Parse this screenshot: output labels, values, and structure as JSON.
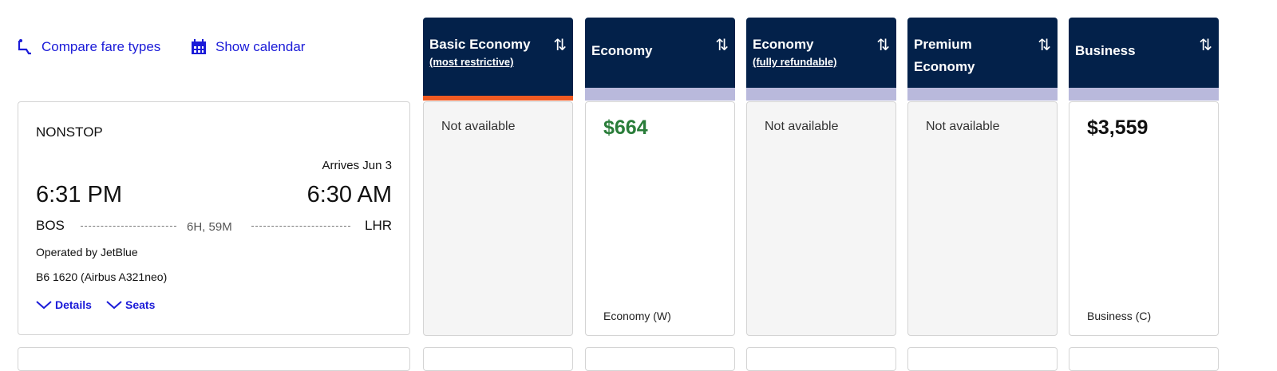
{
  "toolbar": {
    "compare_label": "Compare fare types",
    "calendar_label": "Show calendar"
  },
  "colors": {
    "navy": "#03214a",
    "link": "#1b1bd8",
    "price_green": "#2a7d3a",
    "band_lavender": "#b9b9dc",
    "band_orange": "#f05a22"
  },
  "flight": {
    "stops": "NONSTOP",
    "arrives_note": "Arrives Jun 3",
    "depart_time": "6:31 PM",
    "arrive_time": "6:30 AM",
    "origin": "BOS",
    "destination": "LHR",
    "duration": "6H, 59M",
    "operated_by": "Operated by JetBlue",
    "flight_number": "B6 1620 (Airbus A321neo)",
    "details_label": "Details",
    "seats_label": "Seats"
  },
  "fares": [
    {
      "title": "Basic Economy",
      "subtitle": "(most restrictive)",
      "status": "Not available",
      "price": "",
      "class": ""
    },
    {
      "title": "Economy",
      "subtitle": "",
      "status": "",
      "price": "$664",
      "class": "Economy (W)"
    },
    {
      "title": "Economy",
      "subtitle": "(fully refundable)",
      "status": "Not available",
      "price": "",
      "class": ""
    },
    {
      "title": "Premium Economy",
      "subtitle": "",
      "status": "Not available",
      "price": "",
      "class": ""
    },
    {
      "title": "Business",
      "subtitle": "",
      "status": "",
      "price": "$3,559",
      "class": "Business (C)"
    }
  ]
}
